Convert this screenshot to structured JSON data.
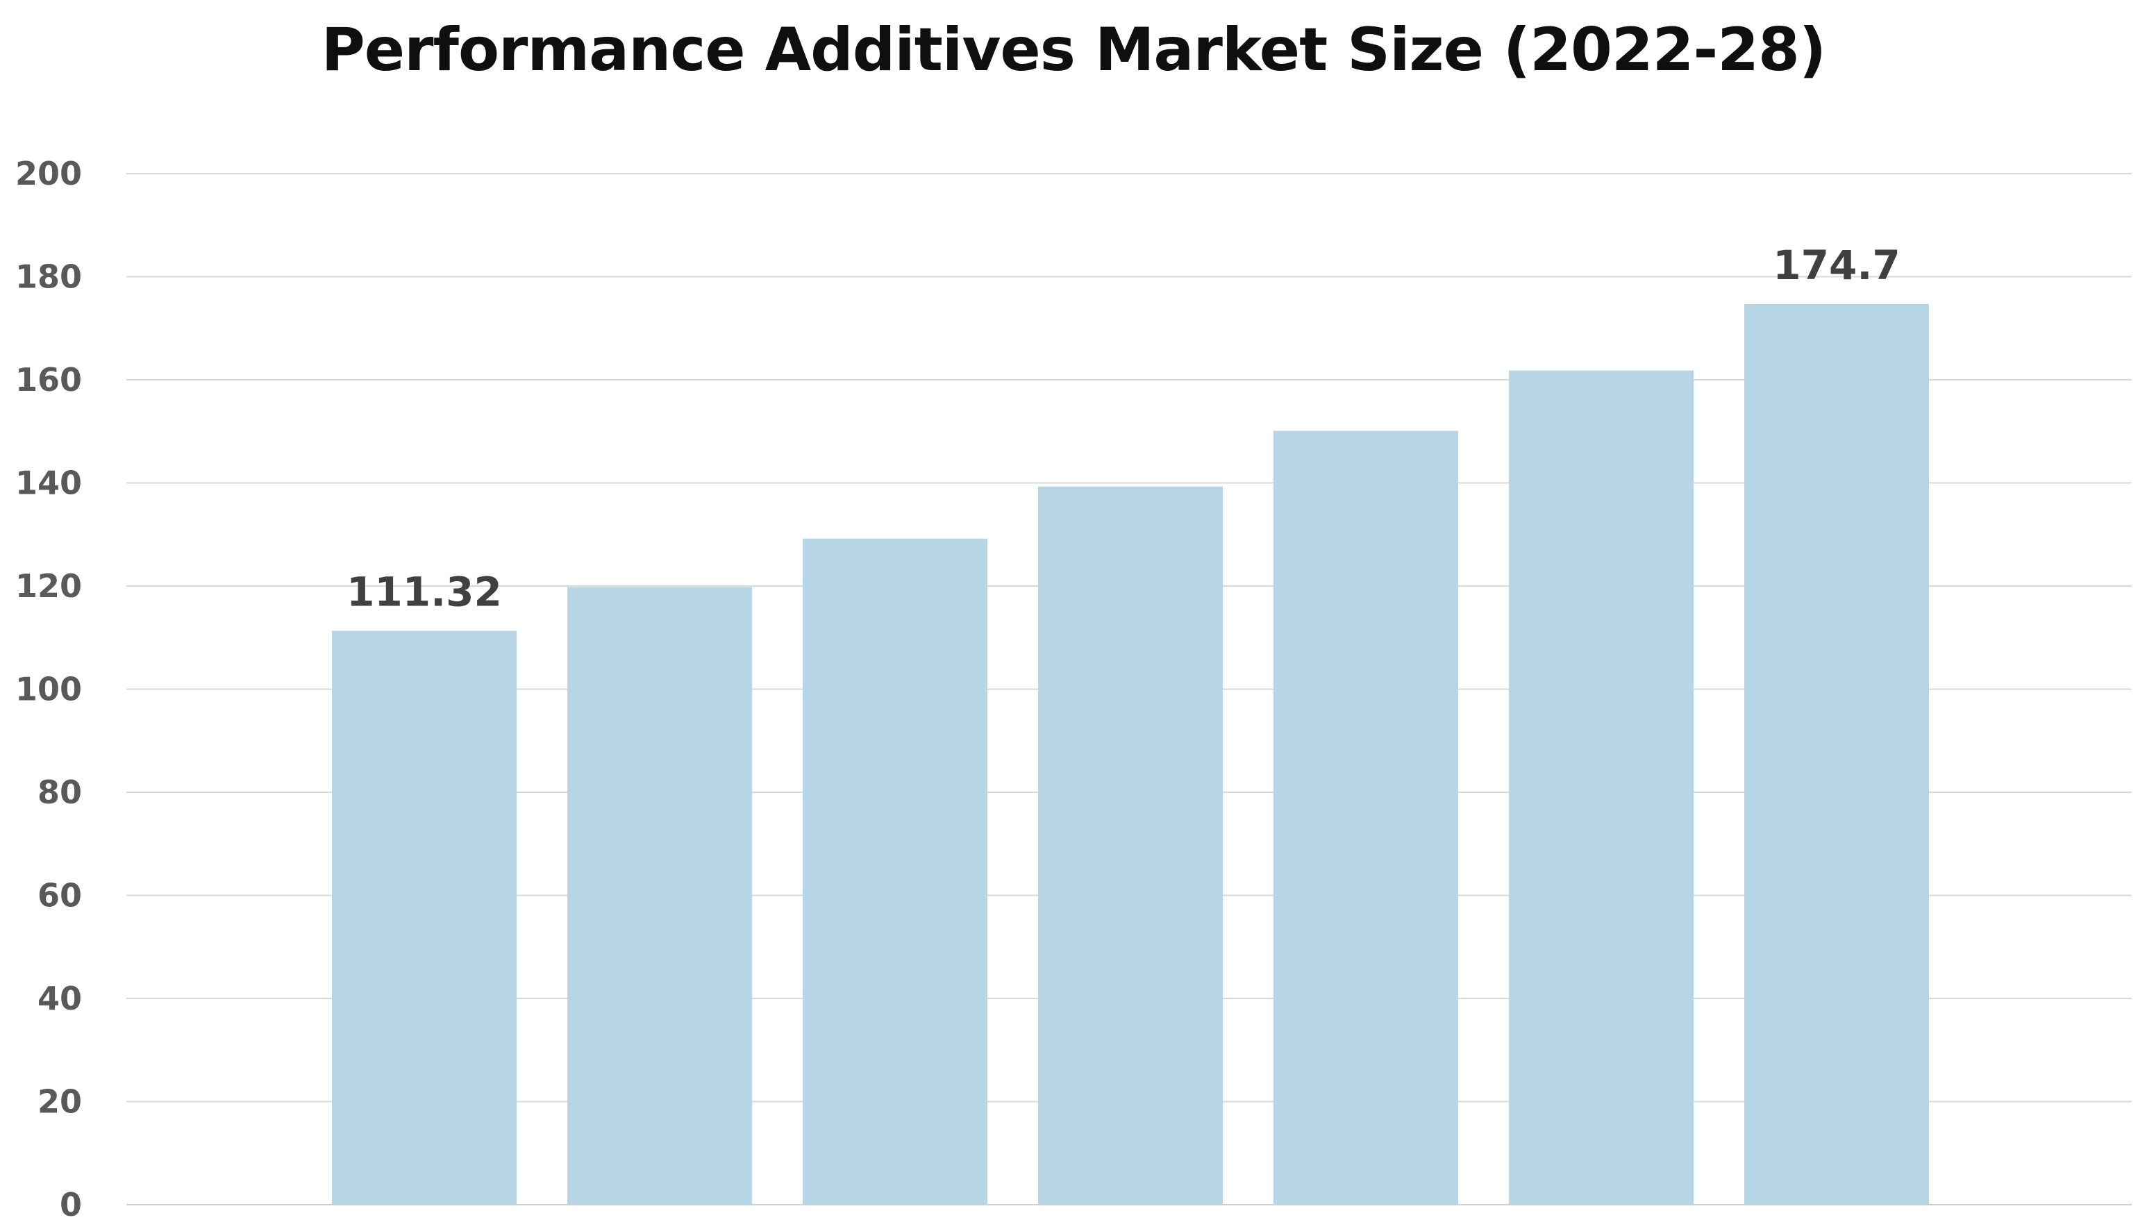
{
  "chart_data": {
    "type": "bar",
    "title": "Performance Additives Market Size (2022-28)",
    "categories": [
      "",
      "",
      "",
      "",
      "",
      "",
      ""
    ],
    "values": [
      111.32,
      119.8,
      129.2,
      139.3,
      150.1,
      161.8,
      174.7
    ],
    "data_labels": [
      "111.32",
      "",
      "",
      "",
      "",
      "",
      "174.7"
    ],
    "ylim": [
      0,
      200
    ],
    "yticks": [
      0,
      20,
      40,
      60,
      80,
      100,
      120,
      140,
      160,
      180,
      200
    ],
    "grid": true,
    "xlabel": "",
    "ylabel": "",
    "bar_color": "#b6d5e5",
    "grid_color": "#d9d9d9"
  }
}
